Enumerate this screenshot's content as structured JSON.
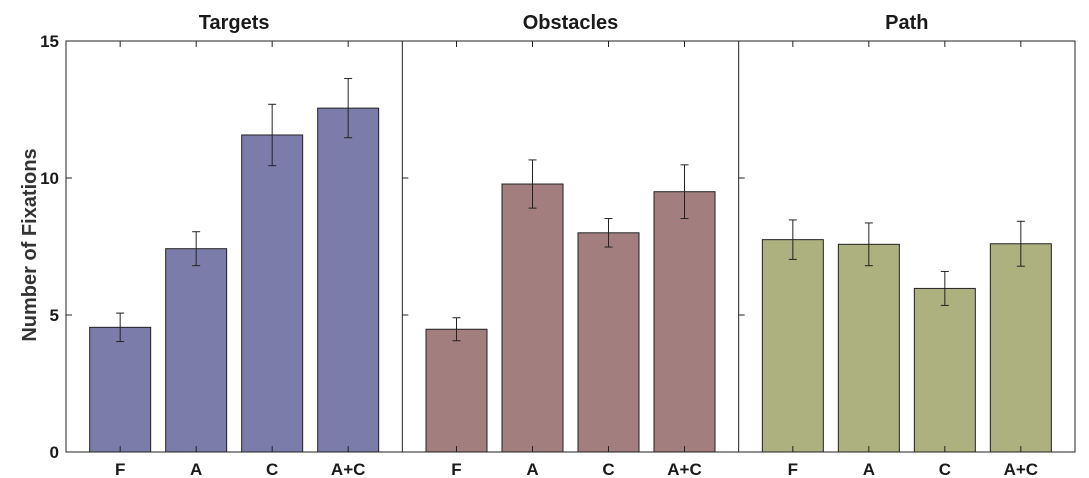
{
  "chart_data": {
    "type": "bar",
    "ylabel": "Number of Fixations",
    "ylim": [
      0,
      15
    ],
    "yticks": [
      0,
      5,
      10,
      15
    ],
    "grid": false,
    "categories": [
      "F",
      "A",
      "C",
      "A+C"
    ],
    "panels": [
      {
        "title": "Targets",
        "color": "#7b7ca9",
        "values": [
          4.55,
          7.42,
          11.57,
          12.55
        ],
        "errors": [
          0.52,
          0.62,
          1.12,
          1.08
        ]
      },
      {
        "title": "Obstacles",
        "color": "#a27f7e",
        "values": [
          4.48,
          9.78,
          8.0,
          9.5
        ],
        "errors": [
          0.42,
          0.88,
          0.52,
          0.98
        ]
      },
      {
        "title": "Path",
        "color": "#adb07f",
        "values": [
          7.75,
          7.58,
          5.97,
          7.6
        ],
        "errors": [
          0.72,
          0.78,
          0.62,
          0.82
        ]
      }
    ]
  }
}
